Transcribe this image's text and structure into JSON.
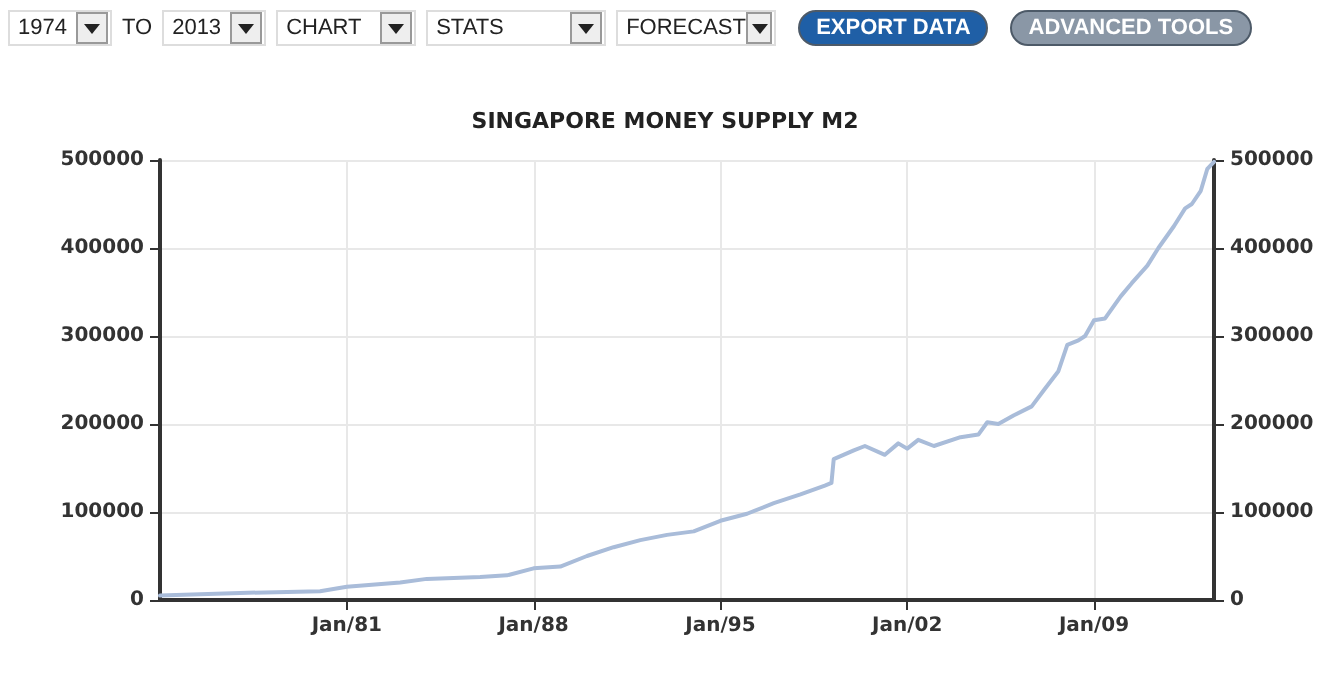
{
  "chart_data": {
    "type": "line",
    "title": "SINGAPORE MONEY SUPPLY M2",
    "annotations": [
      "1974",
      "TO",
      "2013",
      "CHART",
      "STATS",
      "FORECAST",
      "EXPORT DATA",
      "ADVANCED TOOLS"
    ],
    "x": [
      "1974-01",
      "1977-01",
      "1980-01",
      "1981-01",
      "1983-01",
      "1984-01",
      "1986-01",
      "1987-01",
      "1988-01",
      "1989-01",
      "1990-01",
      "1991-01",
      "1992-01",
      "1993-01",
      "1994-01",
      "1995-01",
      "1996-01",
      "1997-01",
      "1998-01",
      "1998-12",
      "1999-03",
      "1999-04",
      "2000-01",
      "2000-06",
      "2001-03",
      "2001-09",
      "2002-01",
      "2002-06",
      "2003-01",
      "2004-01",
      "2004-09",
      "2005-01",
      "2005-06",
      "2006-01",
      "2006-09",
      "2007-03",
      "2007-09",
      "2008-01",
      "2008-06",
      "2008-09",
      "2009-01",
      "2009-06",
      "2010-01",
      "2010-06",
      "2011-01",
      "2011-06",
      "2012-01",
      "2012-06",
      "2012-09",
      "2013-01",
      "2013-04",
      "2013-07"
    ],
    "series": [
      {
        "color": "#a9bcd9",
        "values": [
          5000,
          8000,
          10000,
          15000,
          20000,
          24000,
          26000,
          28000,
          36000,
          38000,
          50000,
          60000,
          68000,
          74000,
          78000,
          90000,
          98000,
          110000,
          120000,
          130000,
          133000,
          160000,
          170000,
          175000,
          165000,
          178000,
          172000,
          182000,
          175000,
          185000,
          188000,
          202000,
          200000,
          210000,
          220000,
          240000,
          260000,
          290000,
          295000,
          300000,
          318000,
          320000,
          345000,
          360000,
          380000,
          400000,
          425000,
          445000,
          450000,
          465000,
          490000,
          498000
        ]
      }
    ],
    "xlim": [
      "1974-01",
      "2013-07"
    ],
    "xticks": [
      {
        "value": "1981-01",
        "label": "Jan/81"
      },
      {
        "value": "1988-01",
        "label": "Jan/88"
      },
      {
        "value": "1995-01",
        "label": "Jan/95"
      },
      {
        "value": "2002-01",
        "label": "Jan/02"
      },
      {
        "value": "2009-01",
        "label": "Jan/09"
      }
    ],
    "ylim": [
      0,
      500000
    ],
    "yticks": [
      0,
      100000,
      200000,
      300000,
      400000,
      500000
    ],
    "y2lim": [
      0,
      500000
    ],
    "y2ticks": [
      0,
      100000,
      200000,
      300000,
      400000,
      500000
    ],
    "grid": true,
    "marker": "none",
    "line_style": "solid"
  }
}
